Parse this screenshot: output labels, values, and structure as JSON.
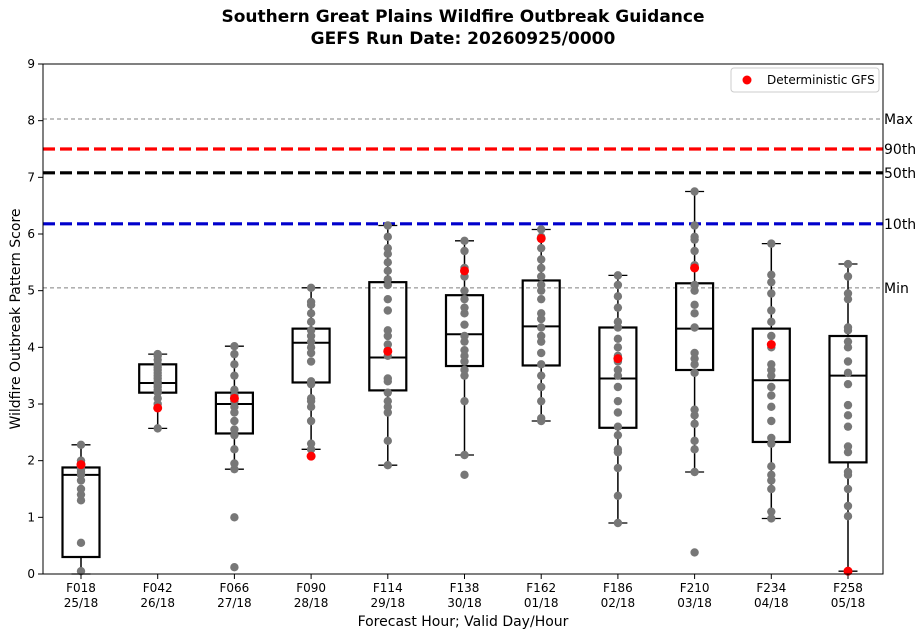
{
  "chart_data": {
    "type": "box",
    "title": [
      "Southern Great Plains Wildfire Outbreak Guidance",
      "GEFS Run Date: 20260925/0000"
    ],
    "xlabel": "Forecast Hour; Valid Day/Hour",
    "ylabel": "Wildfire Outbreak Pattern Score",
    "ylim": [
      0,
      9
    ],
    "yticks": [
      "0",
      "1",
      "2",
      "3",
      "4",
      "5",
      "6",
      "7",
      "8",
      "9"
    ],
    "grid": false,
    "legend": {
      "position": "top-right",
      "entries": [
        {
          "label": "Deterministic GFS",
          "color": "#ff0000"
        }
      ]
    },
    "reference_lines": [
      {
        "label": "Max",
        "value": 8.03,
        "color": "#808080",
        "style": "dashed-thin"
      },
      {
        "label": "90th",
        "value": 7.5,
        "color": "#ff0000",
        "style": "dashed-thick"
      },
      {
        "label": "50th",
        "value": 7.08,
        "color": "#000000",
        "style": "dashed-thick"
      },
      {
        "label": "10th",
        "value": 6.18,
        "color": "#0000cc",
        "style": "dashed-thick"
      },
      {
        "label": "Min",
        "value": 5.05,
        "color": "#808080",
        "style": "dashed-thin"
      }
    ],
    "categories": [
      {
        "hour": "F018",
        "valid": "25/18",
        "whisker_low": 0.0,
        "q1": 0.3,
        "median": 1.75,
        "q3": 1.88,
        "whisker_high": 2.28,
        "deterministic": 1.93,
        "members": [
          0.05,
          0.55,
          1.3,
          1.4,
          1.5,
          1.65,
          1.75,
          1.8,
          1.85,
          1.9,
          1.95,
          2.0,
          2.28
        ]
      },
      {
        "hour": "F042",
        "valid": "26/18",
        "whisker_low": 2.57,
        "q1": 3.2,
        "median": 3.37,
        "q3": 3.7,
        "whisker_high": 3.88,
        "deterministic": 2.93,
        "members": [
          2.57,
          3.0,
          3.1,
          3.2,
          3.25,
          3.3,
          3.35,
          3.4,
          3.45,
          3.5,
          3.55,
          3.6,
          3.65,
          3.7,
          3.78,
          3.85,
          3.88
        ]
      },
      {
        "hour": "F066",
        "valid": "27/18",
        "whisker_low": 1.85,
        "q1": 2.48,
        "median": 3.0,
        "q3": 3.2,
        "whisker_high": 4.02,
        "deterministic": 3.1,
        "members": [
          0.12,
          1.0,
          1.85,
          1.95,
          2.2,
          2.45,
          2.55,
          2.7,
          2.85,
          2.95,
          3.05,
          3.15,
          3.25,
          3.5,
          3.7,
          3.88,
          4.02
        ]
      },
      {
        "hour": "F090",
        "valid": "28/18",
        "whisker_low": 2.2,
        "q1": 3.38,
        "median": 4.08,
        "q3": 4.33,
        "whisker_high": 5.05,
        "deterministic": 2.08,
        "members": [
          2.2,
          2.3,
          2.7,
          2.95,
          3.05,
          3.1,
          3.35,
          3.4,
          3.75,
          3.9,
          4.0,
          4.1,
          4.2,
          4.3,
          4.45,
          4.6,
          4.75,
          4.8,
          5.05
        ]
      },
      {
        "hour": "F114",
        "valid": "29/18",
        "whisker_low": 1.92,
        "q1": 3.24,
        "median": 3.82,
        "q3": 5.15,
        "whisker_high": 6.15,
        "deterministic": 3.93,
        "members": [
          1.92,
          2.35,
          2.85,
          2.95,
          3.05,
          3.2,
          3.4,
          3.45,
          3.85,
          3.95,
          4.05,
          4.2,
          4.3,
          4.65,
          4.85,
          5.1,
          5.2,
          5.35,
          5.5,
          5.65,
          5.75,
          5.95,
          6.15
        ]
      },
      {
        "hour": "F138",
        "valid": "30/18",
        "whisker_low": 2.1,
        "q1": 3.67,
        "median": 4.23,
        "q3": 4.92,
        "whisker_high": 5.88,
        "deterministic": 5.35,
        "members": [
          1.75,
          2.1,
          3.05,
          3.5,
          3.6,
          3.75,
          3.85,
          3.95,
          4.1,
          4.2,
          4.4,
          4.6,
          4.7,
          4.85,
          5.0,
          5.25,
          5.4,
          5.7,
          5.88
        ]
      },
      {
        "hour": "F162",
        "valid": "01/18",
        "whisker_low": 2.7,
        "q1": 3.68,
        "median": 4.37,
        "q3": 5.18,
        "whisker_high": 6.08,
        "deterministic": 5.92,
        "members": [
          2.7,
          2.75,
          3.05,
          3.3,
          3.5,
          3.7,
          3.9,
          4.1,
          4.2,
          4.35,
          4.5,
          4.6,
          4.85,
          5.0,
          5.1,
          5.25,
          5.4,
          5.55,
          5.75,
          5.95,
          6.08
        ]
      },
      {
        "hour": "F186",
        "valid": "02/18",
        "whisker_low": 0.9,
        "q1": 2.58,
        "median": 3.45,
        "q3": 4.35,
        "whisker_high": 5.27,
        "deterministic": 3.8,
        "members": [
          0.9,
          1.38,
          1.87,
          2.15,
          2.2,
          2.45,
          2.6,
          2.85,
          3.05,
          3.3,
          3.5,
          3.6,
          3.75,
          3.85,
          4.0,
          4.15,
          4.35,
          4.45,
          4.7,
          4.9,
          5.1,
          5.27
        ]
      },
      {
        "hour": "F210",
        "valid": "03/18",
        "whisker_low": 1.8,
        "q1": 3.6,
        "median": 4.33,
        "q3": 5.13,
        "whisker_high": 6.75,
        "deterministic": 5.4,
        "members": [
          0.38,
          1.8,
          2.2,
          2.35,
          2.65,
          2.8,
          2.9,
          3.55,
          3.7,
          3.8,
          3.9,
          4.35,
          4.6,
          4.75,
          5.0,
          5.1,
          5.45,
          5.7,
          5.9,
          5.95,
          6.15,
          6.75
        ]
      },
      {
        "hour": "F234",
        "valid": "04/18",
        "whisker_low": 0.98,
        "q1": 2.33,
        "median": 3.42,
        "q3": 4.33,
        "whisker_high": 5.83,
        "deterministic": 4.05,
        "members": [
          0.98,
          1.1,
          1.5,
          1.65,
          1.75,
          1.9,
          2.3,
          2.4,
          2.7,
          2.95,
          3.15,
          3.3,
          3.5,
          3.6,
          3.7,
          4.0,
          4.2,
          4.45,
          4.65,
          4.95,
          5.15,
          5.28,
          5.83
        ]
      },
      {
        "hour": "F258",
        "valid": "05/18",
        "whisker_low": 0.05,
        "q1": 1.97,
        "median": 3.5,
        "q3": 4.2,
        "whisker_high": 5.47,
        "deterministic": 0.05,
        "members": [
          0.05,
          1.02,
          1.2,
          1.5,
          1.75,
          1.8,
          2.15,
          2.25,
          2.6,
          2.8,
          2.98,
          3.35,
          3.55,
          3.75,
          4.0,
          4.1,
          4.3,
          4.35,
          4.85,
          4.95,
          5.25,
          5.47
        ]
      }
    ]
  }
}
